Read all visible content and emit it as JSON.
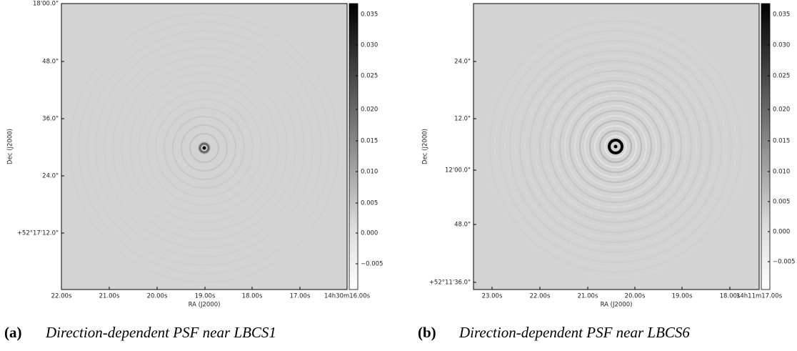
{
  "panels": [
    {
      "label": "(a)",
      "caption": "Direction-dependent PSF near LBCS1",
      "x_axis_label": "RA (J2000)",
      "y_axis_label": "Dec (J2000)",
      "x_ticks": [
        "22.00s",
        "21.00s",
        "20.00s",
        "19.00s",
        "18.00s",
        "17.00s",
        "14h30m16.00s"
      ],
      "y_ticks": [
        "18'00.0\"",
        "48.0\"",
        "36.0\"",
        "24.0\"",
        "+52°17'12.0\""
      ],
      "colorbar_ticks": [
        "0.035",
        "0.030",
        "0.025",
        "0.020",
        "0.015",
        "0.010",
        "0.005",
        "0.000",
        "−0.005"
      ]
    },
    {
      "label": "(b)",
      "caption": "Direction-dependent PSF near LBCS6",
      "x_axis_label": "RA (J2000)",
      "y_axis_label": "Dec (J2000)",
      "x_ticks": [
        "23.00s",
        "22.00s",
        "21.00s",
        "20.00s",
        "19.00s",
        "18.00s",
        "14h11m17.00s"
      ],
      "y_ticks": [
        "24.0\"",
        "12.0\"",
        "12'00.0\"",
        "48.0\"",
        "+52°11'36.0\""
      ],
      "colorbar_ticks": [
        "0.035",
        "0.030",
        "0.025",
        "0.020",
        "0.015",
        "0.010",
        "0.005",
        "0.000",
        "−0.005"
      ]
    }
  ]
}
